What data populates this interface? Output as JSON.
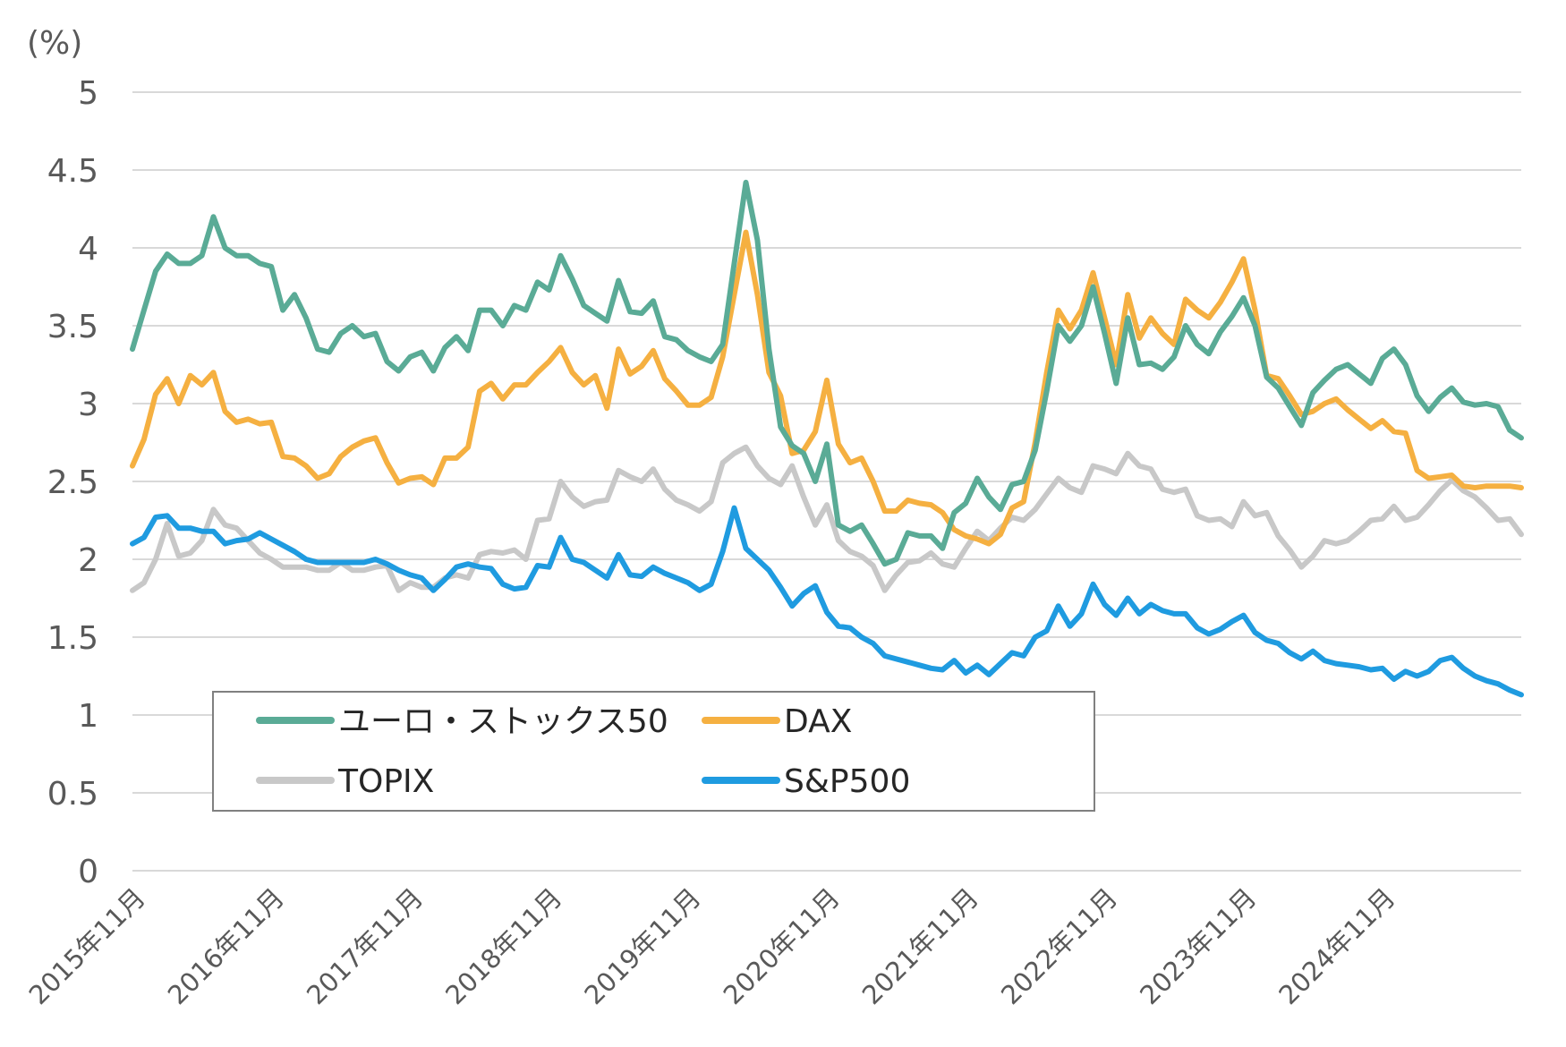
{
  "chart_data": {
    "type": "line",
    "unit_label": "(%)",
    "ylim": [
      0,
      5
    ],
    "y_ticks": [
      "5",
      "4.5",
      "4",
      "3.5",
      "3",
      "2.5",
      "2",
      "1.5",
      "1",
      "0.5",
      "0"
    ],
    "x_tick_labels": [
      "2015年11月",
      "2016年11月",
      "2017年11月",
      "2018年11月",
      "2019年11月",
      "2020年11月",
      "2021年11月",
      "2022年11月",
      "2023年11月",
      "2024年11月"
    ],
    "x_start": "2015-11",
    "x_end": "2025-09",
    "grid": true,
    "legend_position": "bottom-left (inside plot)",
    "series": [
      {
        "name": "ユーロ・ストックス50",
        "color": "#5aab96",
        "values": [
          3.35,
          3.6,
          3.85,
          3.96,
          3.9,
          3.9,
          3.95,
          4.2,
          4.0,
          3.95,
          3.95,
          3.9,
          3.88,
          3.6,
          3.7,
          3.55,
          3.35,
          3.33,
          3.45,
          3.5,
          3.43,
          3.45,
          3.27,
          3.21,
          3.3,
          3.33,
          3.21,
          3.36,
          3.43,
          3.34,
          3.6,
          3.6,
          3.5,
          3.63,
          3.6,
          3.78,
          3.73,
          3.95,
          3.8,
          3.63,
          3.58,
          3.53,
          3.79,
          3.59,
          3.58,
          3.66,
          3.43,
          3.41,
          3.34,
          3.3,
          3.27,
          3.38,
          3.9,
          4.42,
          4.05,
          3.35,
          2.85,
          2.73,
          2.68,
          2.5,
          2.74,
          2.22,
          2.18,
          2.22,
          2.1,
          1.97,
          2.0,
          2.17,
          2.15,
          2.15,
          2.07,
          2.3,
          2.36,
          2.52,
          2.4,
          2.32,
          2.48,
          2.5,
          2.7,
          3.08,
          3.5,
          3.4,
          3.5,
          3.75,
          3.45,
          3.13,
          3.55,
          3.25,
          3.26,
          3.22,
          3.3,
          3.5,
          3.38,
          3.32,
          3.46,
          3.56,
          3.68,
          3.5,
          3.17,
          3.1,
          2.98,
          2.86,
          3.07,
          3.15,
          3.22,
          3.25,
          3.19,
          3.13,
          3.29,
          3.35,
          3.25,
          3.05,
          2.95,
          3.04,
          3.1,
          3.01,
          2.99,
          3.0,
          2.98,
          2.83,
          2.78
        ]
      },
      {
        "name": "DAX",
        "color": "#f5b041",
        "values": [
          2.6,
          2.77,
          3.06,
          3.16,
          3.0,
          3.18,
          3.12,
          3.2,
          2.95,
          2.88,
          2.9,
          2.87,
          2.88,
          2.66,
          2.65,
          2.6,
          2.52,
          2.55,
          2.66,
          2.72,
          2.76,
          2.78,
          2.62,
          2.49,
          2.52,
          2.53,
          2.48,
          2.65,
          2.65,
          2.72,
          3.08,
          3.13,
          3.03,
          3.12,
          3.12,
          3.2,
          3.27,
          3.36,
          3.2,
          3.12,
          3.18,
          2.97,
          3.35,
          3.19,
          3.24,
          3.34,
          3.16,
          3.08,
          2.99,
          2.99,
          3.04,
          3.3,
          3.7,
          4.1,
          3.7,
          3.2,
          3.05,
          2.68,
          2.7,
          2.82,
          3.15,
          2.74,
          2.62,
          2.65,
          2.5,
          2.31,
          2.31,
          2.38,
          2.36,
          2.35,
          2.3,
          2.19,
          2.15,
          2.13,
          2.1,
          2.16,
          2.33,
          2.37,
          2.75,
          3.2,
          3.6,
          3.48,
          3.6,
          3.84,
          3.55,
          3.25,
          3.7,
          3.42,
          3.55,
          3.45,
          3.38,
          3.67,
          3.6,
          3.55,
          3.65,
          3.78,
          3.93,
          3.6,
          3.18,
          3.16,
          3.05,
          2.93,
          2.95,
          3.0,
          3.03,
          2.96,
          2.9,
          2.84,
          2.89,
          2.82,
          2.81,
          2.57,
          2.52,
          2.53,
          2.54,
          2.47,
          2.46,
          2.47,
          2.47,
          2.47,
          2.46
        ]
      },
      {
        "name": "TOPIX",
        "color": "#c8c8c8",
        "values": [
          1.8,
          1.85,
          2.0,
          2.23,
          2.02,
          2.04,
          2.12,
          2.32,
          2.22,
          2.2,
          2.12,
          2.04,
          2.0,
          1.95,
          1.95,
          1.95,
          1.93,
          1.93,
          1.98,
          1.93,
          1.93,
          1.95,
          1.96,
          1.8,
          1.85,
          1.82,
          1.82,
          1.88,
          1.9,
          1.88,
          2.03,
          2.05,
          2.04,
          2.06,
          2.0,
          2.25,
          2.26,
          2.5,
          2.4,
          2.34,
          2.37,
          2.38,
          2.57,
          2.53,
          2.5,
          2.58,
          2.45,
          2.38,
          2.35,
          2.31,
          2.37,
          2.62,
          2.68,
          2.72,
          2.6,
          2.52,
          2.48,
          2.6,
          2.4,
          2.22,
          2.35,
          2.12,
          2.05,
          2.02,
          1.96,
          1.8,
          1.9,
          1.98,
          1.99,
          2.04,
          1.97,
          1.95,
          2.07,
          2.18,
          2.12,
          2.2,
          2.27,
          2.25,
          2.32,
          2.42,
          2.52,
          2.46,
          2.43,
          2.6,
          2.58,
          2.55,
          2.68,
          2.6,
          2.58,
          2.45,
          2.43,
          2.45,
          2.28,
          2.25,
          2.26,
          2.21,
          2.37,
          2.28,
          2.3,
          2.15,
          2.06,
          1.95,
          2.02,
          2.12,
          2.1,
          2.12,
          2.18,
          2.25,
          2.26,
          2.34,
          2.25,
          2.27,
          2.35,
          2.44,
          2.51,
          2.44,
          2.4,
          2.33,
          2.25,
          2.26,
          2.16
        ]
      },
      {
        "name": "S&P500",
        "color": "#1f9be0",
        "values": [
          2.1,
          2.14,
          2.27,
          2.28,
          2.2,
          2.2,
          2.18,
          2.18,
          2.1,
          2.12,
          2.13,
          2.17,
          2.13,
          2.09,
          2.05,
          2.0,
          1.98,
          1.98,
          1.98,
          1.98,
          1.98,
          2.0,
          1.97,
          1.93,
          1.9,
          1.88,
          1.8,
          1.87,
          1.95,
          1.97,
          1.95,
          1.94,
          1.84,
          1.81,
          1.82,
          1.96,
          1.95,
          2.14,
          2.0,
          1.98,
          1.93,
          1.88,
          2.03,
          1.9,
          1.89,
          1.95,
          1.91,
          1.88,
          1.85,
          1.8,
          1.84,
          2.05,
          2.33,
          2.07,
          2.0,
          1.93,
          1.82,
          1.7,
          1.78,
          1.83,
          1.66,
          1.57,
          1.56,
          1.5,
          1.46,
          1.38,
          1.36,
          1.34,
          1.32,
          1.3,
          1.29,
          1.35,
          1.27,
          1.32,
          1.26,
          1.33,
          1.4,
          1.38,
          1.5,
          1.54,
          1.7,
          1.57,
          1.65,
          1.84,
          1.71,
          1.64,
          1.75,
          1.65,
          1.71,
          1.67,
          1.65,
          1.65,
          1.56,
          1.52,
          1.55,
          1.6,
          1.64,
          1.53,
          1.48,
          1.46,
          1.4,
          1.36,
          1.41,
          1.35,
          1.33,
          1.32,
          1.31,
          1.29,
          1.3,
          1.23,
          1.28,
          1.25,
          1.28,
          1.35,
          1.37,
          1.3,
          1.25,
          1.22,
          1.2,
          1.16,
          1.13
        ]
      }
    ],
    "legend": [
      {
        "label": "ユーロ・ストックス50",
        "color": "#5aab96"
      },
      {
        "label": "DAX",
        "color": "#f5b041"
      },
      {
        "label": "TOPIX",
        "color": "#c8c8c8"
      },
      {
        "label": "S&P500",
        "color": "#1f9be0"
      }
    ]
  }
}
